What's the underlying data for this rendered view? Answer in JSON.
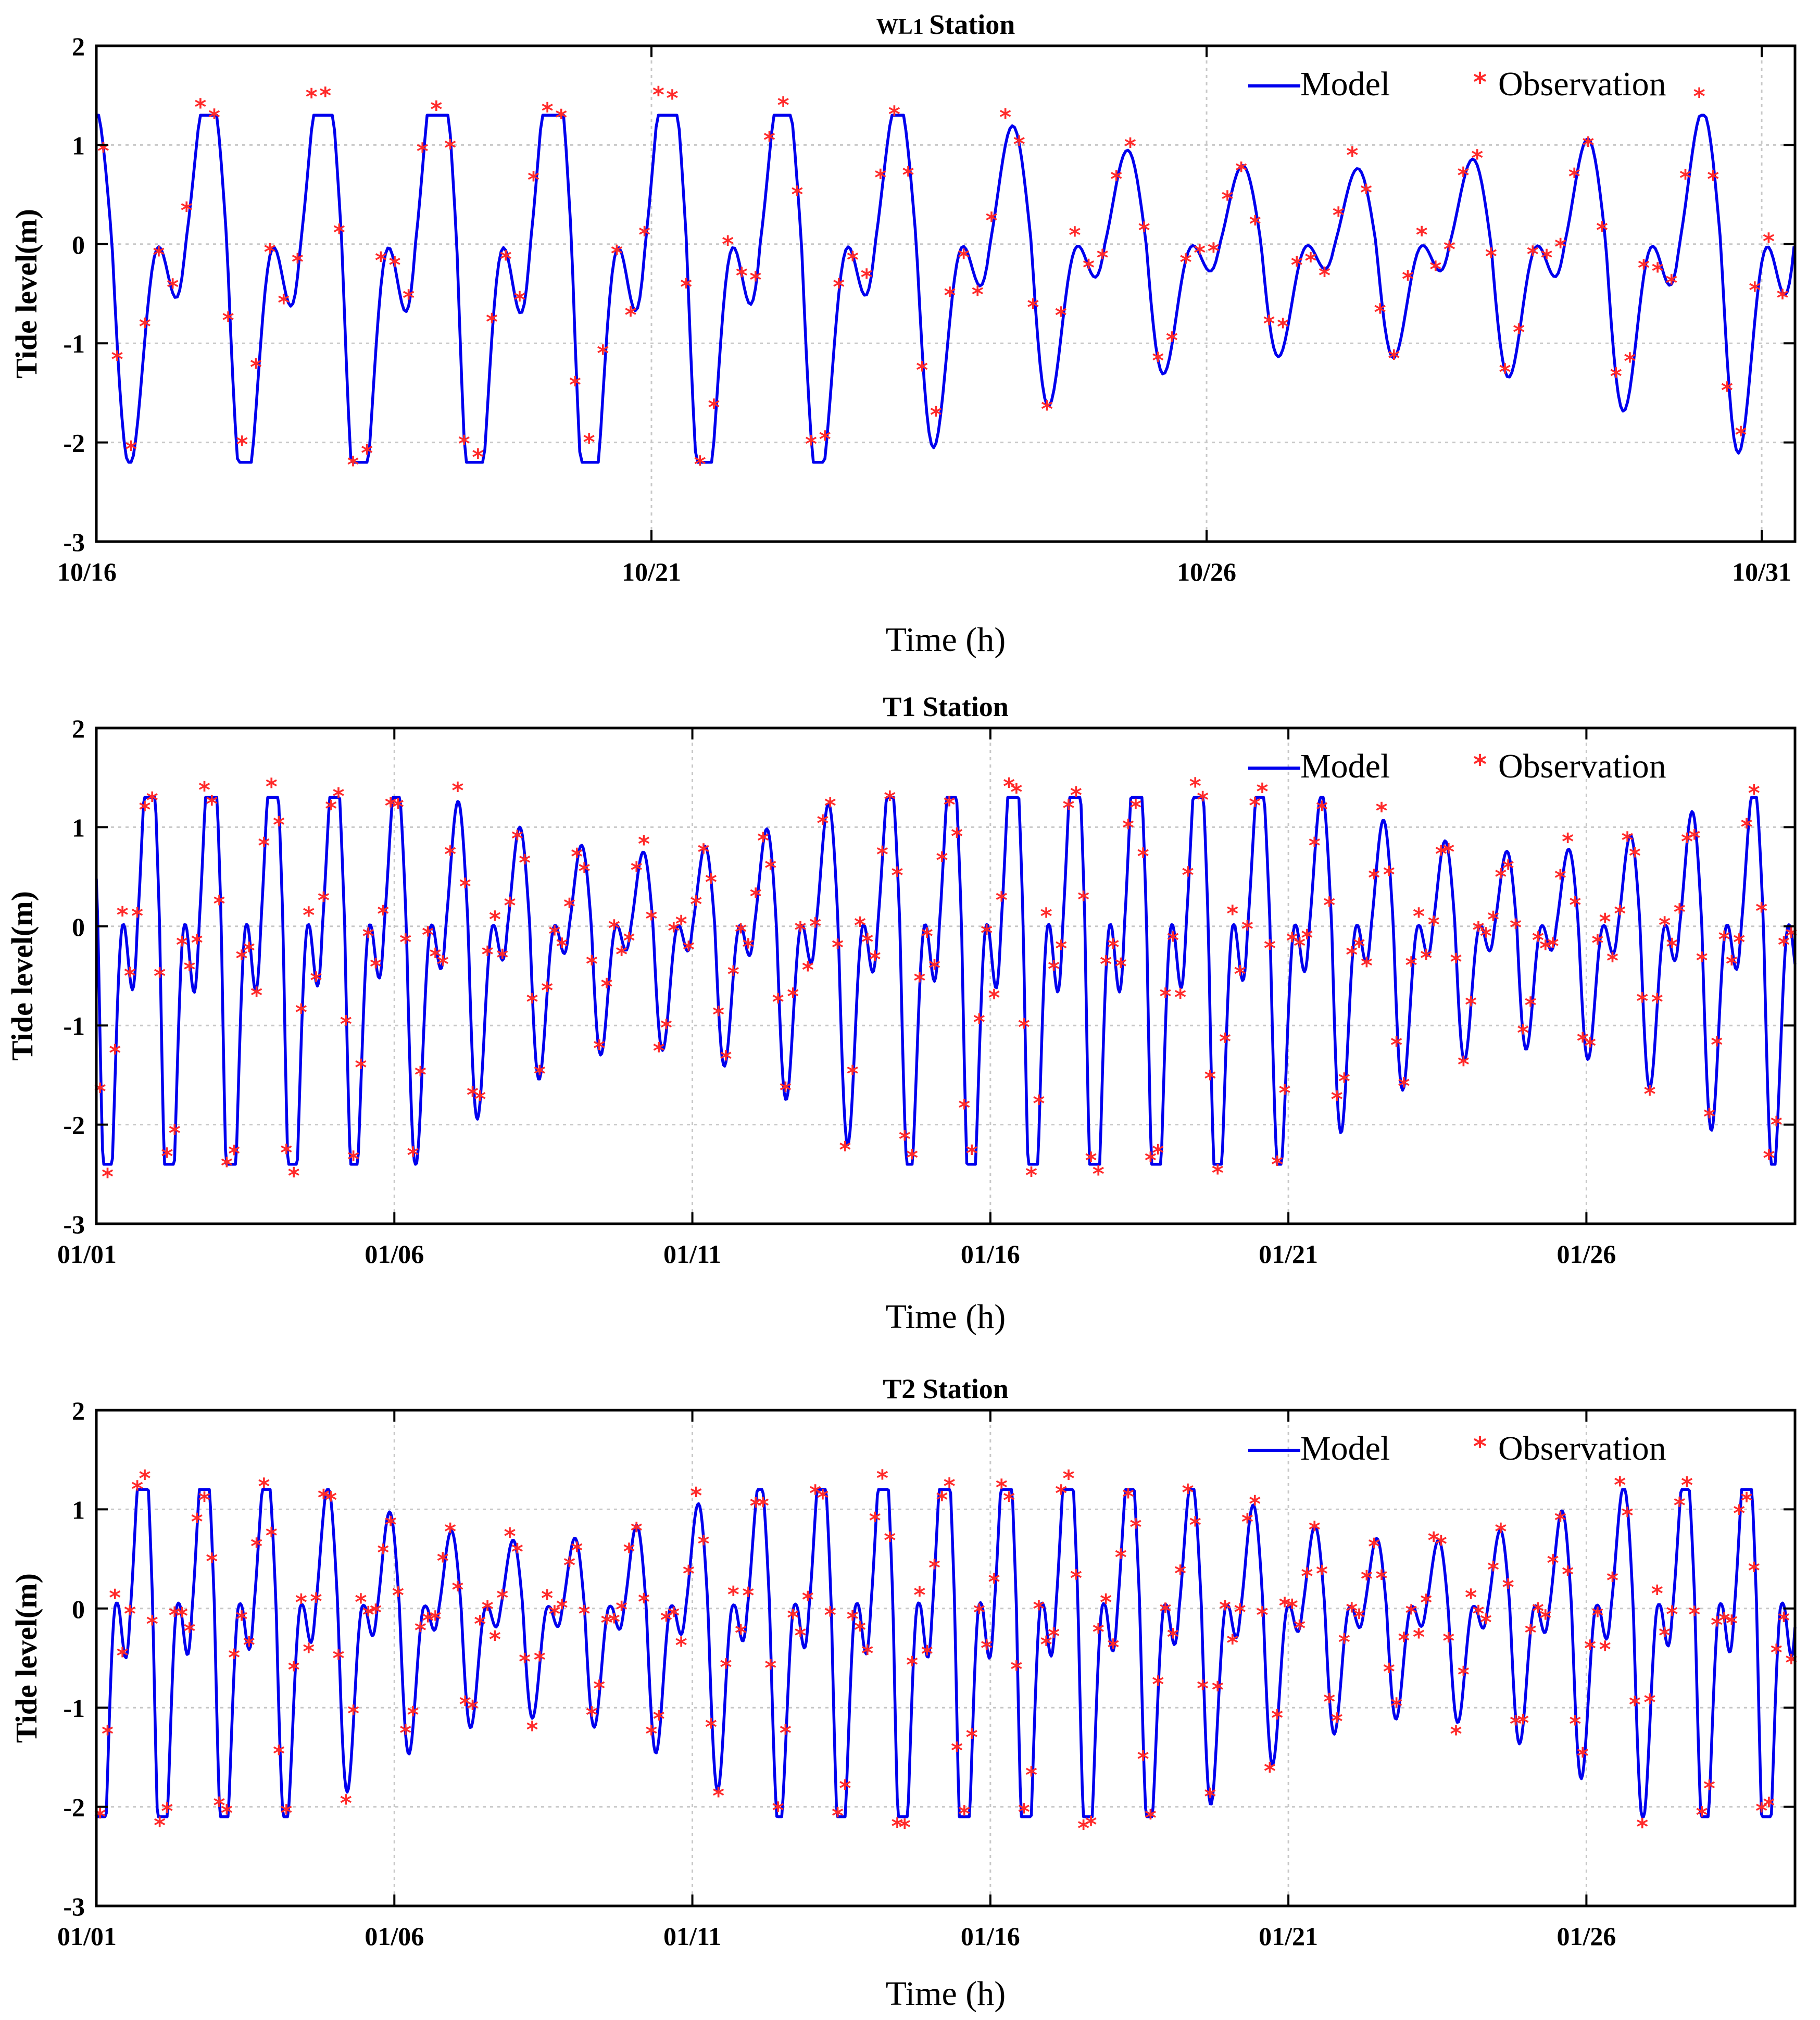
{
  "figure": {
    "colors": {
      "model": "#0000ee",
      "observation": "#ff2a2a",
      "grid": "#c8c8c8",
      "axis": "#000000"
    }
  },
  "chart_data": [
    {
      "type": "line",
      "title_prefix": "WL1",
      "title_suffix": "Station",
      "xlabel": "Time (h)",
      "ylabel": "Tide level(m)",
      "ylim": [
        -3,
        2
      ],
      "yticks": [
        "2",
        "1",
        "0",
        "-1",
        "-2",
        "-3"
      ],
      "ytick_values": [
        2,
        1,
        0,
        -1,
        -2,
        -3
      ],
      "xlim_days": [
        0,
        15.3
      ],
      "xticks": [
        "10/16",
        "10/21",
        "10/26",
        "10/31"
      ],
      "xtick_days": [
        0,
        5,
        10,
        15
      ],
      "legend": {
        "model": "Model",
        "observation": "Observation",
        "marker": "*",
        "placement": "top-right"
      },
      "series": [
        {
          "name": "Model",
          "kind": "line",
          "amp_max": 1.3,
          "amp_min": 2.2
        },
        {
          "name": "Observation",
          "kind": "scatter",
          "amp_max": 1.4,
          "amp_min": 2.1,
          "step_hours": 3
        }
      ]
    },
    {
      "type": "line",
      "title_prefix": "T1",
      "title_suffix": "Station",
      "xlabel": "Time (h)",
      "ylabel": "Tide level(m)",
      "ylim": [
        -3,
        2
      ],
      "yticks": [
        "2",
        "1",
        "0",
        "-1",
        "-2",
        "-3"
      ],
      "ytick_values": [
        2,
        1,
        0,
        -1,
        -2,
        -3
      ],
      "xlim_days": [
        0,
        28.5
      ],
      "xticks": [
        "01/01",
        "01/06",
        "01/11",
        "01/16",
        "01/21",
        "01/26"
      ],
      "xtick_days": [
        0,
        5,
        10,
        15,
        20,
        25
      ],
      "legend": {
        "model": "Model",
        "observation": "Observation",
        "marker": "*",
        "placement": "top-right"
      },
      "series": [
        {
          "name": "Model",
          "kind": "line",
          "amp_max": 1.3,
          "amp_min": 2.4
        },
        {
          "name": "Observation",
          "kind": "scatter",
          "amp_max": 1.3,
          "amp_min": 2.4,
          "step_hours": 3
        }
      ]
    },
    {
      "type": "line",
      "title_prefix": "T2",
      "title_suffix": "Station",
      "xlabel": "Time (h)",
      "ylabel": "Tide level(m)",
      "ylim": [
        -3,
        2
      ],
      "yticks": [
        "2",
        "1",
        "0",
        "-1",
        "-2",
        "-3"
      ],
      "ytick_values": [
        2,
        1,
        0,
        -1,
        -2,
        -3
      ],
      "xlim_days": [
        0,
        28.5
      ],
      "xticks": [
        "01/01",
        "01/06",
        "01/11",
        "01/16",
        "01/21",
        "01/26"
      ],
      "xtick_days": [
        0,
        5,
        10,
        15,
        20,
        25
      ],
      "legend": {
        "model": "Model",
        "observation": "Observation",
        "marker": "*",
        "placement": "top-right"
      },
      "series": [
        {
          "name": "Model",
          "kind": "line",
          "amp_max": 1.2,
          "amp_min": 2.1
        },
        {
          "name": "Observation",
          "kind": "scatter",
          "amp_max": 1.2,
          "amp_min": 2.1,
          "step_hours": 3
        }
      ]
    }
  ]
}
